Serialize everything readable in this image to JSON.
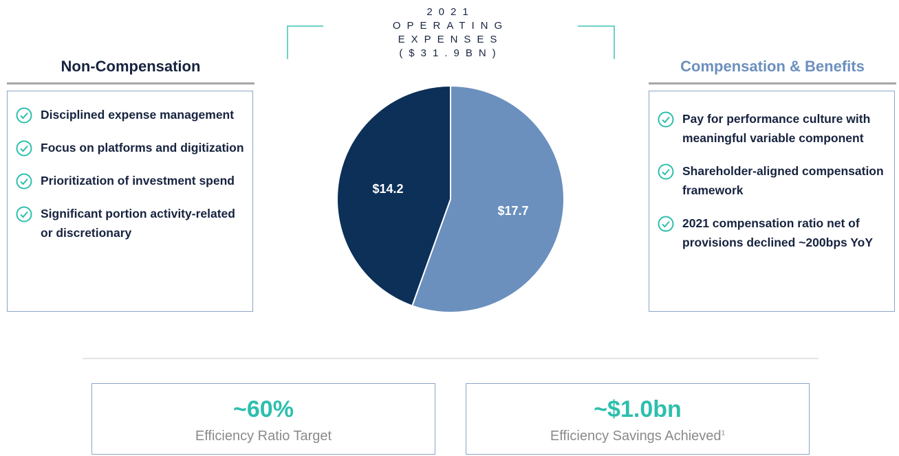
{
  "chart_data": {
    "type": "pie",
    "title": "2021 OPERATING EXPENSES",
    "subtitle": "($31.9BN)",
    "categories": [
      "Non-Compensation",
      "Compensation & Benefits"
    ],
    "values": [
      14.2,
      17.7
    ],
    "value_labels": [
      "$14.2",
      "$17.7"
    ],
    "colors": [
      "#0c3058",
      "#6b90be"
    ]
  },
  "panels": [
    {
      "items": [
        "Disciplined expense management",
        "Focus on platforms and digitization",
        "Prioritization of investment spend",
        "Significant portion activity-related or discretionary"
      ]
    },
    {
      "items": [
        "Pay for performance culture with meaningful variable component",
        "Shareholder-aligned compensation framework",
        "2021 compensation ratio net of provisions declined ~200bps YoY"
      ]
    }
  ],
  "metrics": [
    {
      "value": "~60%",
      "label": "Efficiency Ratio Target"
    },
    {
      "value": "~$1.0bn",
      "label": "Efficiency Savings Achieved",
      "footnote": "1"
    }
  ]
}
